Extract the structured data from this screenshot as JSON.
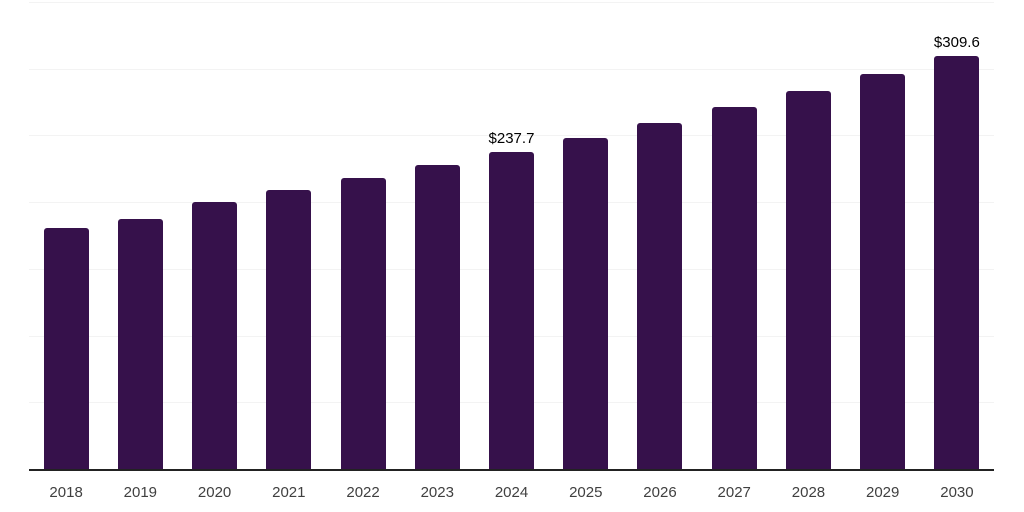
{
  "chart_data": {
    "type": "bar",
    "title": "",
    "xlabel": "",
    "ylabel": "",
    "categories": [
      "2018",
      "2019",
      "2020",
      "2021",
      "2022",
      "2023",
      "2024",
      "2025",
      "2026",
      "2027",
      "2028",
      "2029",
      "2030"
    ],
    "values": [
      180.4,
      187.5,
      200.3,
      209.4,
      218.1,
      228.0,
      237.7,
      248.4,
      259.6,
      271.3,
      283.5,
      296.2,
      309.6
    ],
    "data_labels": {
      "2024": "$237.7",
      "2030": "$309.6"
    },
    "ylim": [
      0,
      350
    ],
    "gridline_interval": 50,
    "grid": "horizontal",
    "legend": "none",
    "y_tick_labels_visible": false,
    "colors": {
      "bar": "#36114b",
      "gridline": "#f3f3f3",
      "axis_line": "#222222",
      "tick_label": "#404040",
      "data_label": "#000000",
      "background": "#ffffff"
    }
  }
}
